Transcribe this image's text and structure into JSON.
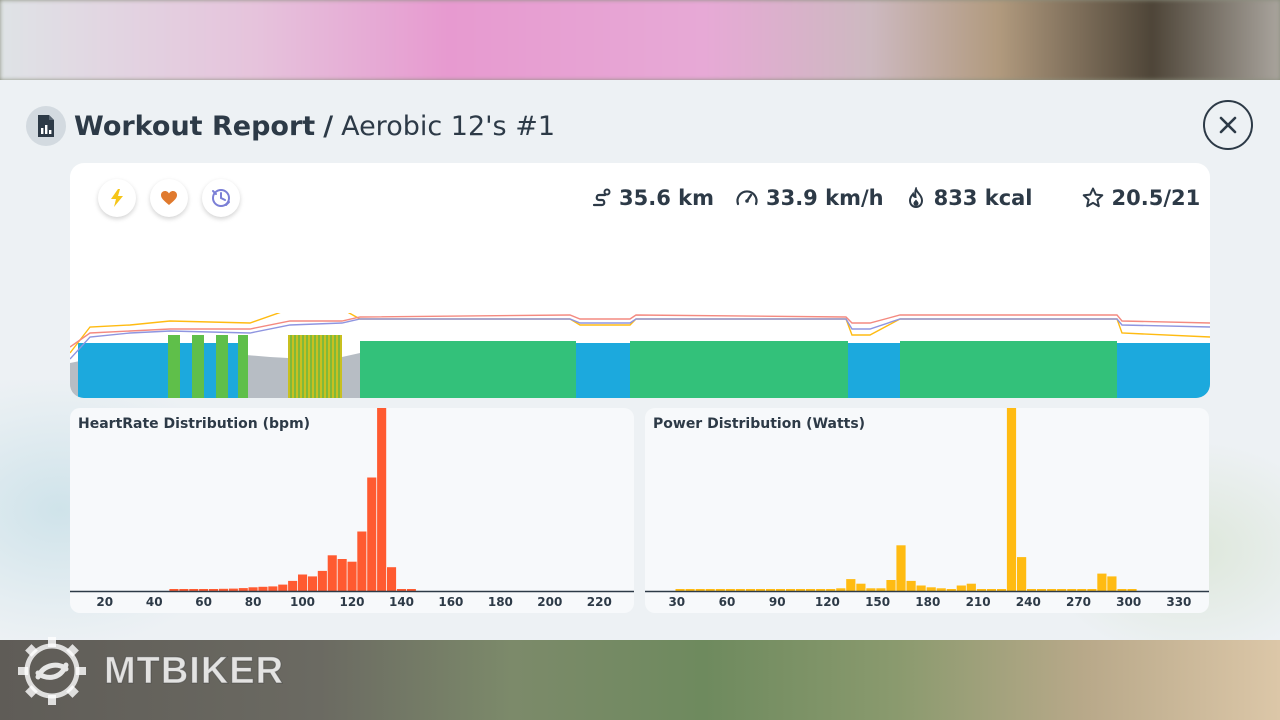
{
  "header": {
    "title_bold": "Workout Report",
    "separator": "/",
    "workout_name": "Aerobic 12's #1",
    "report_icon": "report-document-icon",
    "close_icon": "close-icon"
  },
  "summary": {
    "toggles": [
      {
        "icon": "lightning-icon",
        "color": "#f5c518"
      },
      {
        "icon": "heart-icon",
        "color": "#e07a2e"
      },
      {
        "icon": "cadence-icon",
        "color": "#7b7fd6"
      }
    ],
    "distance": "35.6 km",
    "speed": "33.9 km/h",
    "calories": "833 kcal",
    "score": "20.5/21"
  },
  "colors": {
    "heart_rate": "#ff5a30",
    "power": "#ffbb12",
    "zone_green": "#33c17a",
    "zone_blue": "#1ca9dd",
    "zone_grey": "#b7bdc4",
    "text": "#2d3a47"
  },
  "chart_data": [
    {
      "type": "bar",
      "title": "HeartRate Distribution (bpm)",
      "xlabel": "",
      "ylabel": "",
      "xlim": [
        10,
        230
      ],
      "x_ticks": [
        20,
        40,
        60,
        80,
        100,
        120,
        140,
        160,
        180,
        200,
        220
      ],
      "bin_width": 4,
      "x": [
        48,
        52,
        56,
        60,
        64,
        68,
        72,
        76,
        80,
        84,
        88,
        92,
        96,
        100,
        104,
        108,
        112,
        116,
        120,
        124,
        128,
        132,
        136,
        140,
        144
      ],
      "values": [
        0.3,
        0.3,
        0.4,
        0.6,
        1.0,
        1.2,
        1.3,
        1.6,
        2.0,
        2.3,
        2.5,
        3.5,
        5.5,
        9.0,
        8.0,
        11.0,
        19.5,
        17.5,
        16.0,
        32.5,
        62.0,
        100.0,
        13.0,
        1.0,
        0.3
      ],
      "color": "#ff5a30"
    },
    {
      "type": "bar",
      "title": "Power Distribution (Watts)",
      "xlabel": "",
      "ylabel": "",
      "xlim": [
        17,
        342
      ],
      "x_ticks": [
        30,
        60,
        90,
        120,
        150,
        180,
        210,
        240,
        270,
        300,
        330
      ],
      "bin_width": 6,
      "x": [
        32,
        38,
        44,
        50,
        56,
        62,
        68,
        74,
        80,
        86,
        92,
        98,
        104,
        110,
        116,
        122,
        128,
        134,
        140,
        146,
        152,
        158,
        164,
        170,
        176,
        182,
        188,
        194,
        200,
        206,
        212,
        218,
        224,
        230,
        236,
        242,
        248,
        254,
        260,
        266,
        272,
        278,
        284,
        290,
        296,
        302
      ],
      "values": [
        0.5,
        1.0,
        0.5,
        0.5,
        0.5,
        0.5,
        0.5,
        0.5,
        0.5,
        0.5,
        0.5,
        0.5,
        0.5,
        0.5,
        0.5,
        0.5,
        1.5,
        6.5,
        4.0,
        1.5,
        1.5,
        6.0,
        25.0,
        5.5,
        3.0,
        2.0,
        1.5,
        0.5,
        3.0,
        4.0,
        0.5,
        0.5,
        0.5,
        100.0,
        18.5,
        0.5,
        0.5,
        0.5,
        0.5,
        0.5,
        0.5,
        0.5,
        9.5,
        8.0,
        0.5,
        0.5
      ],
      "color": "#ffbb12"
    }
  ],
  "watermark": {
    "text": "MTBIKER"
  }
}
